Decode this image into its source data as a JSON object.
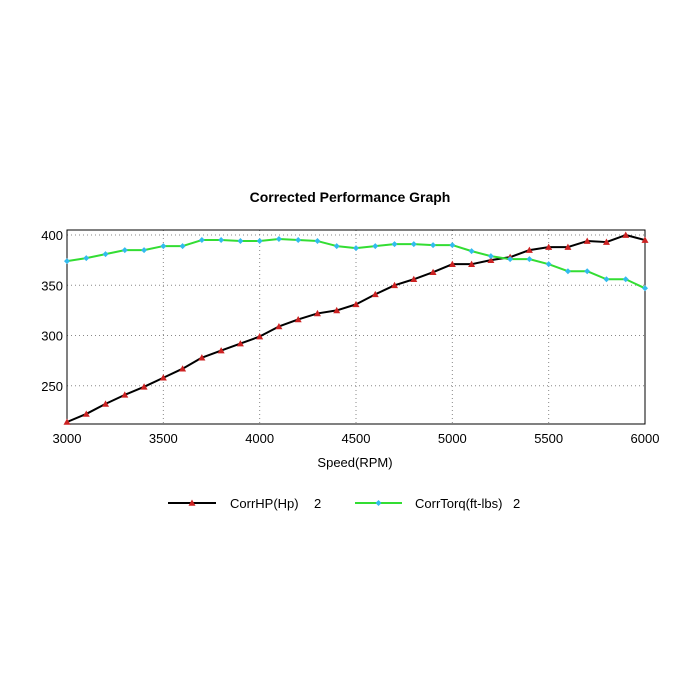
{
  "chart_data": {
    "type": "line",
    "title": "Corrected Performance Graph",
    "xlabel": "Speed(RPM)",
    "ylabel": "",
    "xlim": [
      3000,
      6000
    ],
    "ylim": [
      212,
      405
    ],
    "x_ticks": [
      3000,
      3500,
      4000,
      4500,
      5000,
      5500,
      6000
    ],
    "y_ticks": [
      250,
      300,
      350,
      400
    ],
    "grid": true,
    "legend_position": "bottom",
    "x": [
      3000,
      3100,
      3200,
      3300,
      3400,
      3500,
      3600,
      3700,
      3800,
      3900,
      4000,
      4100,
      4200,
      4300,
      4400,
      4500,
      4600,
      4700,
      4800,
      4900,
      5000,
      5100,
      5200,
      5300,
      5400,
      5500,
      5600,
      5700,
      5800,
      5900,
      6000
    ],
    "series": [
      {
        "name": "CorrHP(Hp)",
        "legend_suffix": "2",
        "color": "#000000",
        "marker_color": "#cc2222",
        "marker": "triangle",
        "values": [
          214,
          222,
          232,
          241,
          249,
          258,
          267,
          278,
          285,
          292,
          299,
          309,
          316,
          322,
          325,
          331,
          341,
          350,
          356,
          363,
          371,
          371,
          375,
          378,
          385,
          388,
          388,
          394,
          393,
          400,
          395
        ]
      },
      {
        "name": "CorrTorq(ft-lbs)",
        "legend_suffix": "2",
        "color": "#33dd33",
        "marker_color": "#33bbee",
        "marker": "diamond",
        "values": [
          374,
          377,
          381,
          385,
          385,
          389,
          389,
          395,
          395,
          394,
          394,
          396,
          395,
          394,
          389,
          387,
          389,
          391,
          391,
          390,
          390,
          384,
          379,
          376,
          376,
          371,
          364,
          364,
          356,
          356,
          347
        ]
      }
    ]
  }
}
